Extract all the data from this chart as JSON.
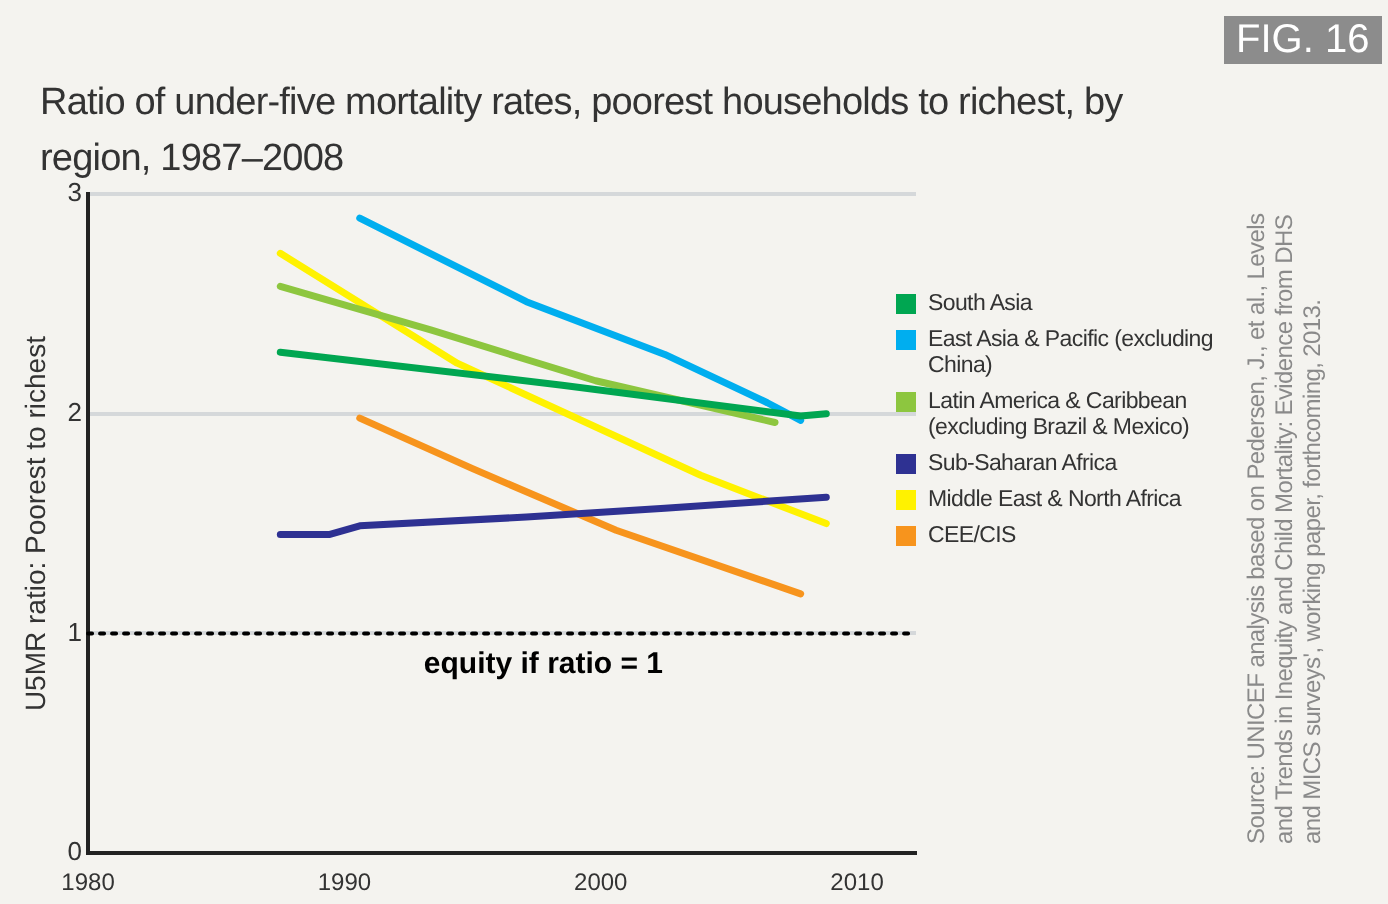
{
  "chart_data": {
    "type": "line",
    "title": "Ratio of under-five mortality rates, poorest households to richest, by region, 1987–2008",
    "ylabel": "U5MR ratio: Poorest to richest",
    "annotations": [
      "FIG. 16",
      "Source: UNICEF analysis based on Pedersen, J., et al., Levels and Trends in Inequity and Child Mortality: Evidence from DHS and MICS surveys', working paper, forthcoming, 2013."
    ],
    "series": [
      {
        "name": "South Asia",
        "color": "#00a651",
        "x": [
          1987.5,
          1998.5,
          2007.8,
          2008.8
        ],
        "values": [
          2.28,
          2.13,
          1.99,
          2.0
        ]
      },
      {
        "name": "East Asia & Pacific (excluding China)",
        "color": "#00aeef",
        "x": [
          1990.6,
          1997.1,
          2002.5,
          2006.5,
          2007.8
        ],
        "values": [
          2.89,
          2.51,
          2.27,
          2.05,
          1.97
        ]
      },
      {
        "name": "Latin America & Caribbean (excluding Brazil & Mexico)",
        "color": "#8dc63f",
        "x": [
          1987.5,
          1993.4,
          1999.8,
          2006.8
        ],
        "values": [
          2.58,
          2.38,
          2.15,
          1.96
        ]
      },
      {
        "name": "Sub-Saharan Africa",
        "color": "#2e3192",
        "x": [
          1987.5,
          1989.4,
          1990.6,
          1997.1,
          2002.5,
          2008.8
        ],
        "values": [
          1.45,
          1.45,
          1.49,
          1.53,
          1.57,
          1.62
        ]
      },
      {
        "name": "Middle East & North Africa",
        "color": "#fff200",
        "x": [
          1987.5,
          1994.4,
          2003.9,
          2008.8
        ],
        "values": [
          2.73,
          2.23,
          1.72,
          1.5
        ]
      },
      {
        "name": "CEE/CIS",
        "color": "#f7941d",
        "x": [
          1990.6,
          1995.0,
          2000.6,
          2007.8
        ],
        "values": [
          1.98,
          1.75,
          1.47,
          1.18
        ]
      }
    ],
    "xlim": [
      1980,
      2012.3
    ],
    "xticks": [
      1980,
      1990,
      2000,
      2010
    ],
    "ylim": [
      0,
      3
    ],
    "yticks": [
      0,
      1,
      2,
      3
    ],
    "ref_lines": [
      {
        "axis": "y",
        "value": 1,
        "label": "equity if ratio = 1",
        "color": "#000000",
        "line_style": "dotted"
      }
    ],
    "grid": "y",
    "legend": "right",
    "marker": "none",
    "line_style": "solid"
  }
}
